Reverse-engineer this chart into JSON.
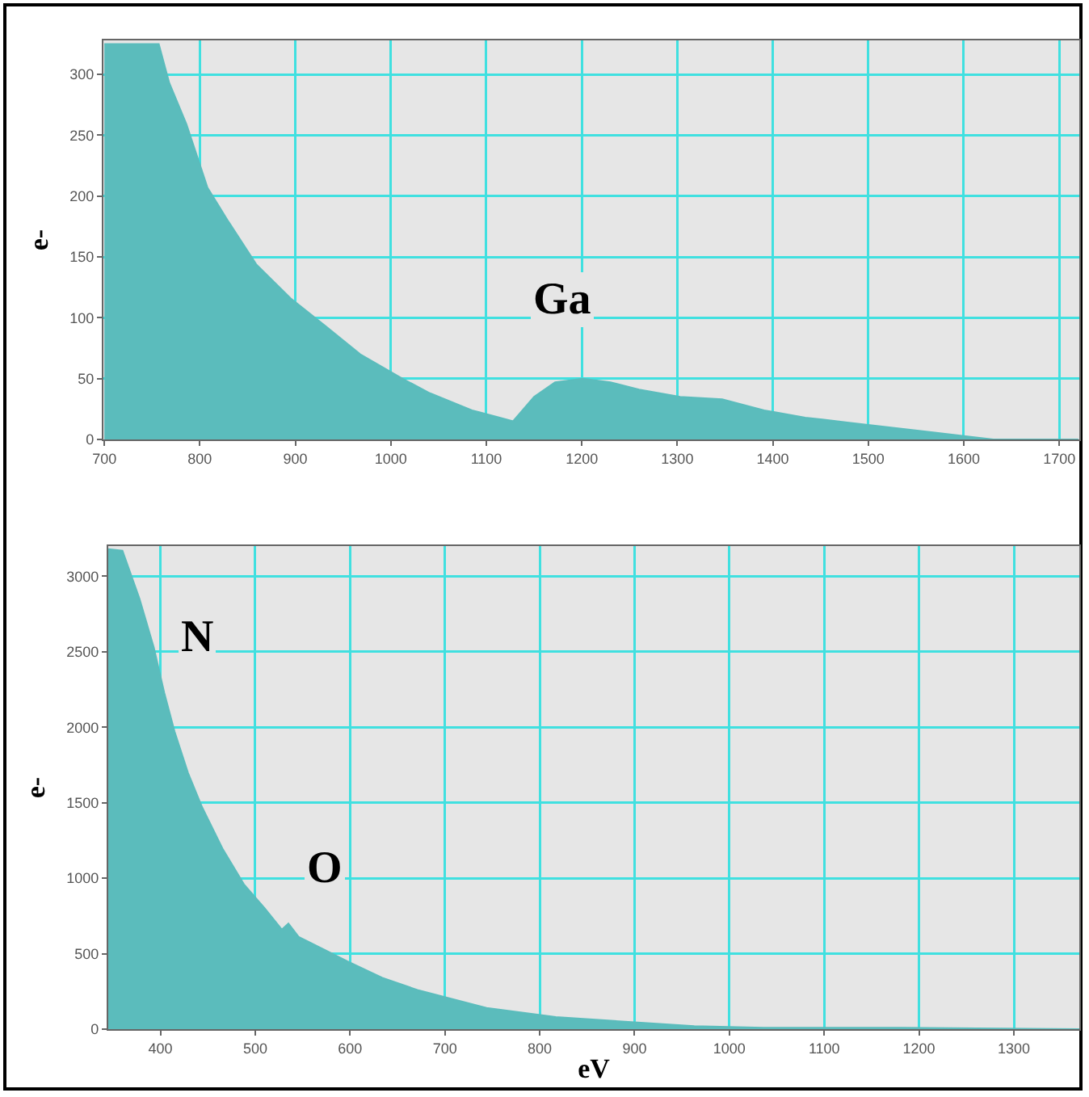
{
  "chart_data": [
    {
      "type": "area",
      "ylabel": "e-",
      "color": "#5bbcbc",
      "grid": true,
      "x": [
        700,
        757,
        768,
        786,
        808,
        830,
        859,
        895,
        932,
        968,
        1012,
        1041,
        1085,
        1114,
        1128,
        1150,
        1172,
        1201,
        1230,
        1260,
        1303,
        1347,
        1391,
        1434,
        1478,
        1522,
        1566,
        1609,
        1631,
        1720
      ],
      "values": [
        325,
        325,
        293,
        259,
        207,
        179,
        144,
        116,
        93,
        70,
        50,
        38,
        24,
        18,
        15,
        35,
        47,
        50,
        47,
        41,
        35,
        33,
        24,
        18,
        14,
        10,
        6,
        2,
        0,
        0
      ],
      "xlim": [
        699,
        1721
      ],
      "xticks": [
        700,
        800,
        900,
        1000,
        1100,
        1200,
        1300,
        1400,
        1500,
        1600,
        1700
      ],
      "ylim": [
        0,
        328
      ],
      "yticks": [
        0,
        50,
        100,
        150,
        200,
        250,
        300
      ],
      "annotations": [
        "Ga"
      ]
    },
    {
      "type": "area",
      "ylabel": "e-",
      "xlabel": "eV",
      "color": "#5bbcbc",
      "grid": true,
      "x": [
        345,
        360,
        378,
        393,
        404,
        415,
        429,
        444,
        466,
        488,
        510,
        528,
        535,
        546,
        575,
        597,
        634,
        671,
        744,
        817,
        890,
        963,
        1036,
        1109,
        1182,
        1369
      ],
      "values": [
        3180,
        3170,
        2850,
        2530,
        2230,
        1970,
        1700,
        1470,
        1190,
        960,
        800,
        660,
        700,
        610,
        520,
        450,
        340,
        260,
        140,
        80,
        50,
        20,
        10,
        10,
        10,
        0
      ],
      "xlim": [
        345,
        1369
      ],
      "xticks": [
        400,
        500,
        600,
        700,
        800,
        900,
        1000,
        1100,
        1200,
        1300
      ],
      "ylim": [
        0,
        3200
      ],
      "yticks": [
        0,
        500,
        1000,
        1500,
        2000,
        2500,
        3000
      ],
      "annotations": [
        "N",
        "O"
      ]
    }
  ]
}
